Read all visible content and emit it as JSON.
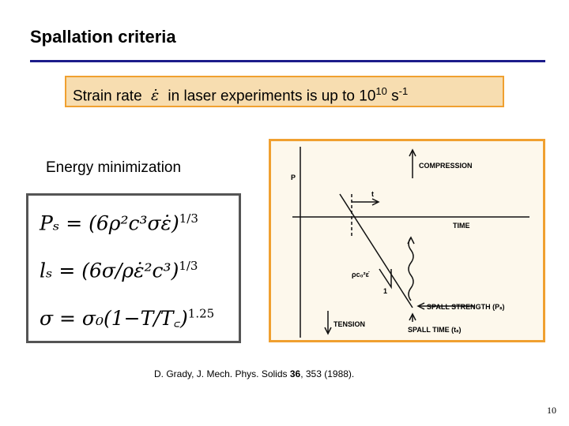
{
  "title": "Spallation criteria",
  "highlight": {
    "before": "Strain rate",
    "symbol": "ε̇",
    "after": "in laser experiments is up to 10",
    "exponent": "10",
    "unit": "s",
    "unit_exponent": "-1"
  },
  "method": "Energy minimization",
  "equations": [
    {
      "text": "Pₛ = (6ρ²c³σε̇)",
      "exponent": "1/3"
    },
    {
      "text": "lₛ = (6σ/ρε̇²c³)",
      "exponent": "1/3"
    },
    {
      "text": "σ = σ₀(1−T/T꜀)",
      "exponent": "1.25"
    }
  ],
  "diagram": {
    "p_axis": "P",
    "compression": "COMPRESSION",
    "t": "t",
    "time": "TIME",
    "slope": "ρc₀²ε̇",
    "one": "1",
    "spall_strength": "SPALL STRENGTH (Pₛ)",
    "tension": "TENSION",
    "spall_time": "SPALL TIME (tₛ)"
  },
  "citation": {
    "before": "D. Grady, J. Mech. Phys. Solids ",
    "volume": "36",
    "after": ", 353 (1988)."
  },
  "page_number": "10"
}
